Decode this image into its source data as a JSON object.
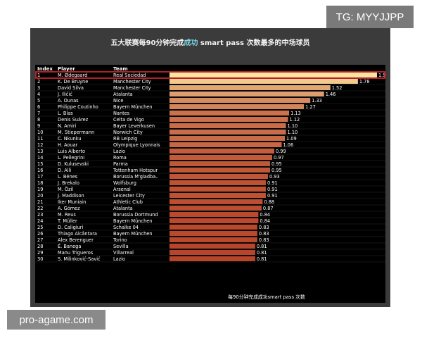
{
  "watermark_top": "TG: MYYJJPP",
  "watermark_bottom": "pro-agame.com",
  "chart_data": {
    "type": "bar",
    "orientation": "horizontal",
    "title_parts": [
      "五大联赛每90分钟完成",
      "成功",
      " smart pass 次数最多的中场球员"
    ],
    "title_highlight_color": "#7fd6e6",
    "columns": [
      "Index",
      "Player",
      "Team"
    ],
    "xlabel": "每90分钟完成成功smart pass 次数",
    "xlim": [
      0,
      2.0
    ],
    "grid": false,
    "highlight_index": 1,
    "highlight_color": "#e0282e",
    "bar_color_high": "#fbe3a1",
    "bar_color_low": "#b8452a",
    "rows": [
      {
        "index": "1",
        "player": "M. Ødegaard",
        "team": "Real Sociedad",
        "value": 1.96
      },
      {
        "index": "2",
        "player": "K. De Bruyne",
        "team": "Manchester City",
        "value": 1.78
      },
      {
        "index": "3",
        "player": "David Silva",
        "team": "Manchester City",
        "value": 1.52
      },
      {
        "index": "4",
        "player": "J. Iličić",
        "team": "Atalanta",
        "value": 1.46
      },
      {
        "index": "5",
        "player": "A. Ounas",
        "team": "Nice",
        "value": 1.33
      },
      {
        "index": "6",
        "player": "Philippe Coutinho",
        "team": "Bayern München",
        "value": 1.27
      },
      {
        "index": "7",
        "player": "L. Blas",
        "team": "Nantes",
        "value": 1.13
      },
      {
        "index": "8",
        "player": "Denis Suárez",
        "team": "Celta de Vigo",
        "value": 1.12
      },
      {
        "index": "9",
        "player": "N. Amiri",
        "team": "Bayer Leverkusen",
        "value": 1.1
      },
      {
        "index": "10",
        "player": "M. Stiepermann",
        "team": "Norwich City",
        "value": 1.1
      },
      {
        "index": "11",
        "player": "C. Nkunku",
        "team": "RB Leipzig",
        "value": 1.09
      },
      {
        "index": "12",
        "player": "H. Aouar",
        "team": "Olympique Lyonnais",
        "value": 1.06
      },
      {
        "index": "13",
        "player": "Luis Alberto",
        "team": "Lazio",
        "value": 0.99
      },
      {
        "index": "14",
        "player": "L. Pellegrini",
        "team": "Roma",
        "value": 0.97
      },
      {
        "index": "15",
        "player": "D. Kulusevski",
        "team": "Parma",
        "value": 0.95
      },
      {
        "index": "16",
        "player": "D. Alli",
        "team": "Tottenham Hotspur",
        "value": 0.95
      },
      {
        "index": "17",
        "player": "L. Bénes",
        "team": "Borussia M'gladba..",
        "value": 0.93
      },
      {
        "index": "18",
        "player": "J. Brekalo",
        "team": "Wolfsburg",
        "value": 0.91
      },
      {
        "index": "19",
        "player": "M. Özil",
        "team": "Arsenal",
        "value": 0.91
      },
      {
        "index": "20",
        "player": "J. Maddison",
        "team": "Leicester City",
        "value": 0.91
      },
      {
        "index": "21",
        "player": "Iker Muniain",
        "team": "Athletic Club",
        "value": 0.88
      },
      {
        "index": "22",
        "player": "A. Gómez",
        "team": "Atalanta",
        "value": 0.87
      },
      {
        "index": "23",
        "player": "M. Reus",
        "team": "Borussia Dortmund",
        "value": 0.84
      },
      {
        "index": "24",
        "player": "T. Müller",
        "team": "Bayern München",
        "value": 0.84
      },
      {
        "index": "25",
        "player": "D. Caligiuri",
        "team": "Schalke 04",
        "value": 0.83
      },
      {
        "index": "26",
        "player": "Thiago Alcântara",
        "team": "Bayern München",
        "value": 0.83
      },
      {
        "index": "27",
        "player": "Alex Berenguer",
        "team": "Torino",
        "value": 0.83
      },
      {
        "index": "28",
        "player": "É. Banega",
        "team": "Sevilla",
        "value": 0.81
      },
      {
        "index": "29",
        "player": "Manu Trigueros",
        "team": "Villarreal",
        "value": 0.81
      },
      {
        "index": "30",
        "player": "S. Milinković-Savić",
        "team": "Lazio",
        "value": 0.81
      }
    ]
  }
}
